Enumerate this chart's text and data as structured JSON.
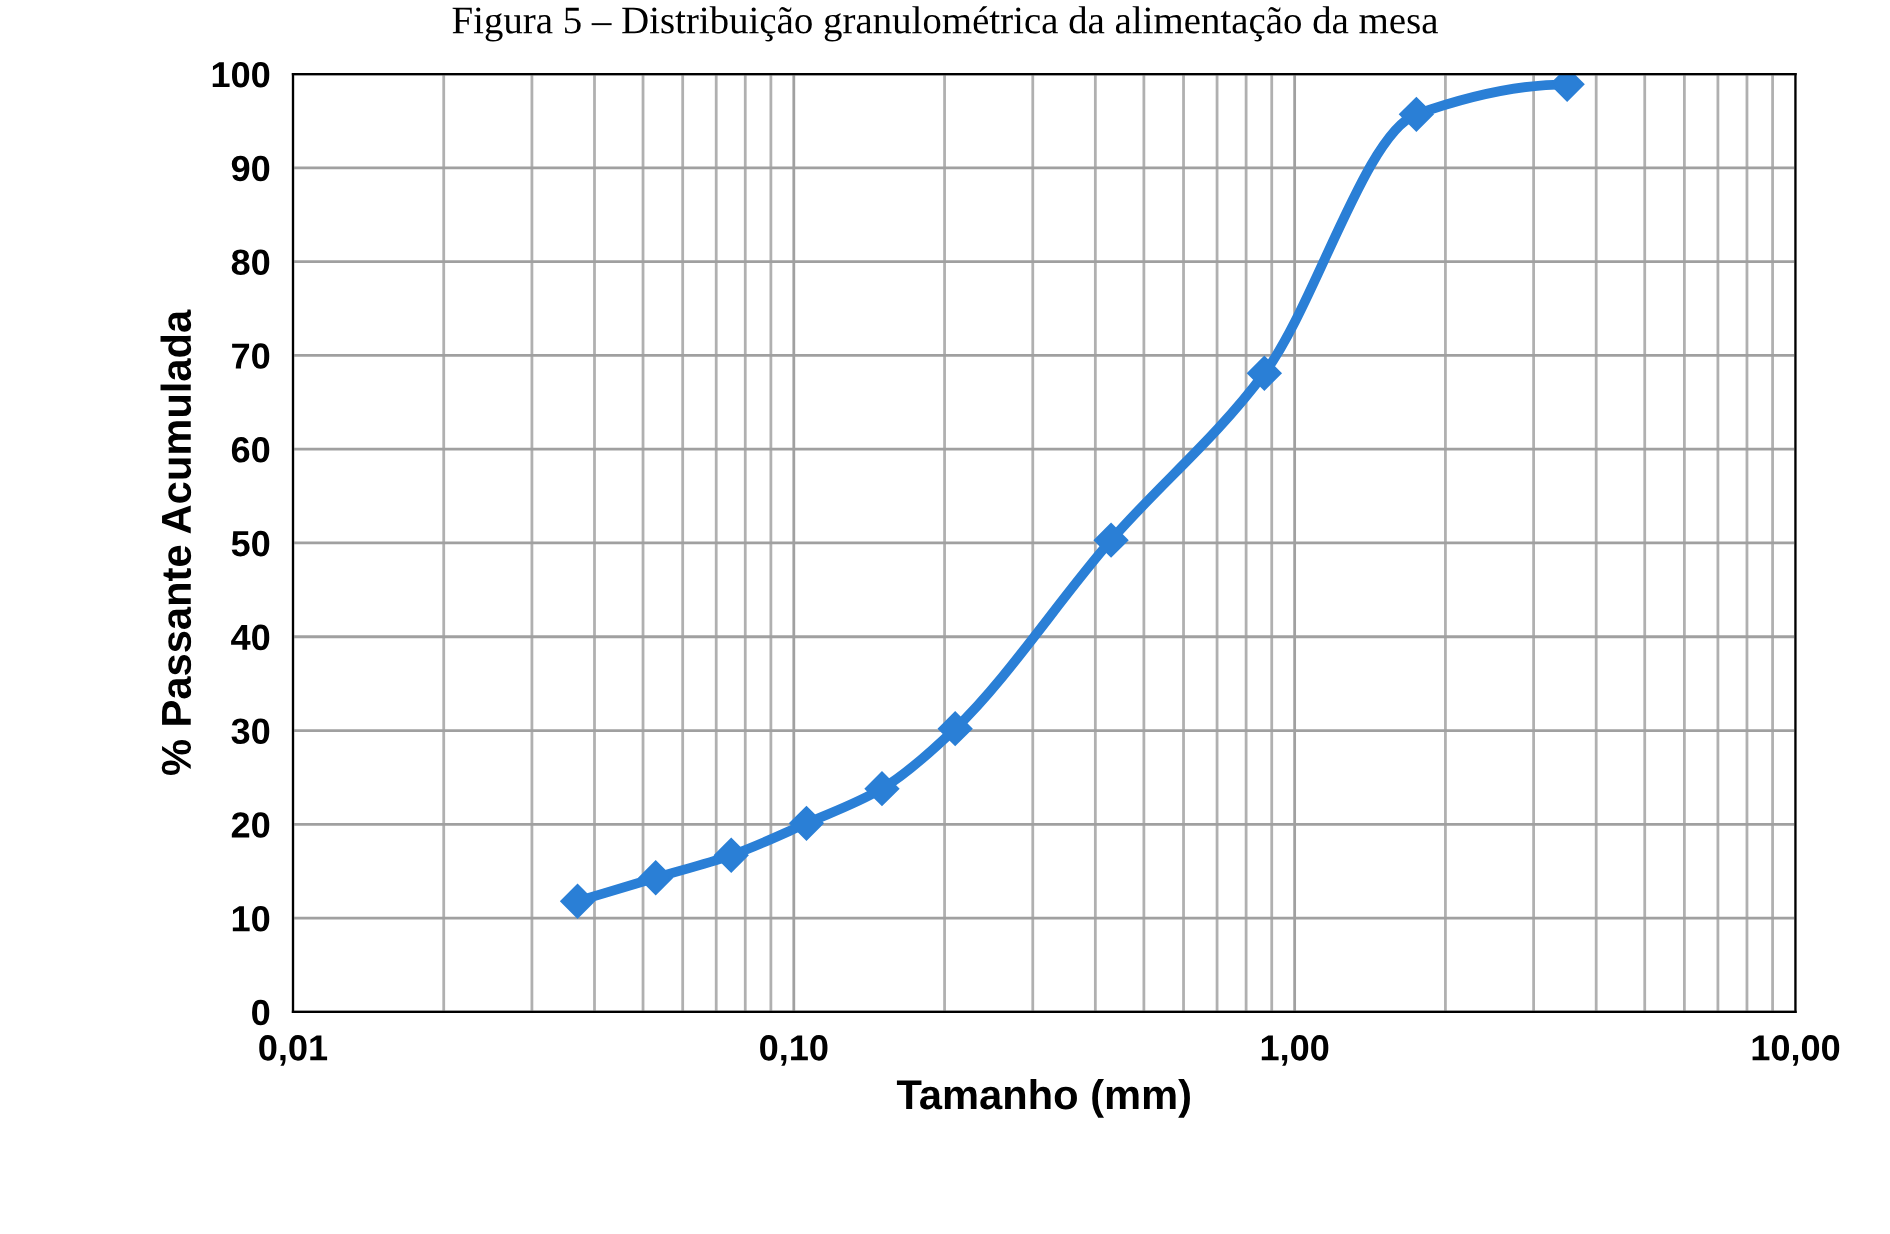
{
  "chart_data": {
    "type": "line",
    "title": "Figura 5 – Distribuição granulométrica da alimentação da mesa",
    "xlabel": "Tamanho (mm)",
    "ylabel": "% Passante Acumulada",
    "x": [
      0.037,
      0.053,
      0.075,
      0.106,
      0.15,
      0.21,
      0.43,
      0.87,
      1.75,
      3.5
    ],
    "series": [
      {
        "color": "#2a7fd6",
        "values": [
          11.8,
          14.3,
          16.7,
          20.1,
          23.8,
          30.2,
          50.3,
          68.1,
          95.7,
          98.9
        ]
      }
    ],
    "log": "x",
    "xlim": [
      0.01,
      10
    ],
    "xticks": [
      {
        "value": 0.01,
        "label": "0,01"
      },
      {
        "value": 0.1,
        "label": "0,10"
      },
      {
        "value": 1,
        "label": "1,00"
      },
      {
        "value": 10,
        "label": "10,00"
      }
    ],
    "ylim": [
      0,
      100
    ],
    "yticks": [
      0,
      10,
      20,
      30,
      40,
      50,
      60,
      70,
      80,
      90,
      100
    ],
    "grid": true,
    "marker": "diamond",
    "line_style": "solid",
    "legend": false
  }
}
